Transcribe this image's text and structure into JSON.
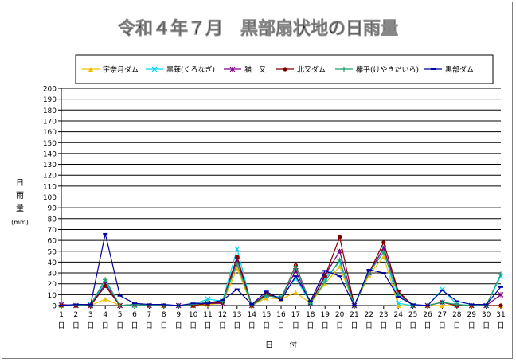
{
  "chart_data": {
    "type": "line",
    "title": "令和４年７月　黒部扇状地の日雨量",
    "ylabel_lines": [
      "日",
      "雨",
      "量",
      "(mm)"
    ],
    "xlabel": "日　　付",
    "ylim": [
      0,
      200
    ],
    "ytick_step": 10,
    "grid": true,
    "legend_position": "top",
    "x": [
      1,
      2,
      3,
      4,
      5,
      6,
      7,
      8,
      9,
      10,
      11,
      12,
      13,
      14,
      15,
      16,
      17,
      18,
      19,
      20,
      21,
      22,
      23,
      24,
      25,
      26,
      27,
      28,
      29,
      30,
      31
    ],
    "x_tick_suffix": "日",
    "series": [
      {
        "name": "宇奈月ダム",
        "color": "#f0c000",
        "marker": "triangle",
        "values": [
          0,
          0,
          0,
          6,
          0,
          0,
          0,
          0,
          0,
          0,
          1,
          2,
          34,
          0,
          7,
          6,
          12,
          2,
          20,
          36,
          0,
          28,
          45,
          0,
          0,
          0,
          0,
          0,
          0,
          0,
          0
        ]
      },
      {
        "name": "黒薙(くろなぎ)",
        "color": "#00d8f0",
        "marker": "x",
        "values": [
          0,
          0,
          1,
          22,
          0,
          0,
          0,
          0,
          0,
          1,
          6,
          4,
          52,
          0,
          9,
          8,
          25,
          3,
          25,
          40,
          0,
          30,
          52,
          2,
          0,
          0,
          15,
          1,
          0,
          0,
          27
        ]
      },
      {
        "name": "猫　又",
        "color": "#800080",
        "marker": "star",
        "values": [
          1,
          0,
          0,
          20,
          0,
          1,
          0,
          0,
          0,
          0,
          2,
          2,
          42,
          0,
          10,
          7,
          32,
          2,
          28,
          50,
          0,
          30,
          53,
          12,
          0,
          0,
          3,
          0,
          0,
          0,
          10
        ]
      },
      {
        "name": "北又ダム",
        "color": "#800000",
        "marker": "circle",
        "values": [
          0,
          0,
          0,
          18,
          0,
          1,
          0,
          0,
          0,
          0,
          2,
          3,
          45,
          0,
          11,
          6,
          37,
          2,
          27,
          63,
          0,
          30,
          58,
          13,
          0,
          0,
          3,
          0,
          0,
          0,
          0
        ]
      },
      {
        "name": "欅平(けやきだいら)",
        "color": "#20a070",
        "marker": "plus",
        "values": [
          0,
          0,
          1,
          24,
          0,
          1,
          0,
          0,
          0,
          1,
          3,
          4,
          38,
          0,
          9,
          7,
          36,
          2,
          22,
          42,
          0,
          30,
          49,
          10,
          0,
          0,
          3,
          1,
          0,
          0,
          29
        ]
      },
      {
        "name": "黒部ダム",
        "color": "#0000a0",
        "marker": "dash",
        "values": [
          0,
          1,
          1,
          66,
          9,
          2,
          1,
          1,
          0,
          2,
          2,
          5,
          15,
          1,
          13,
          5,
          27,
          4,
          32,
          27,
          0,
          33,
          30,
          8,
          1,
          0,
          14,
          4,
          1,
          1,
          17
        ]
      }
    ]
  }
}
